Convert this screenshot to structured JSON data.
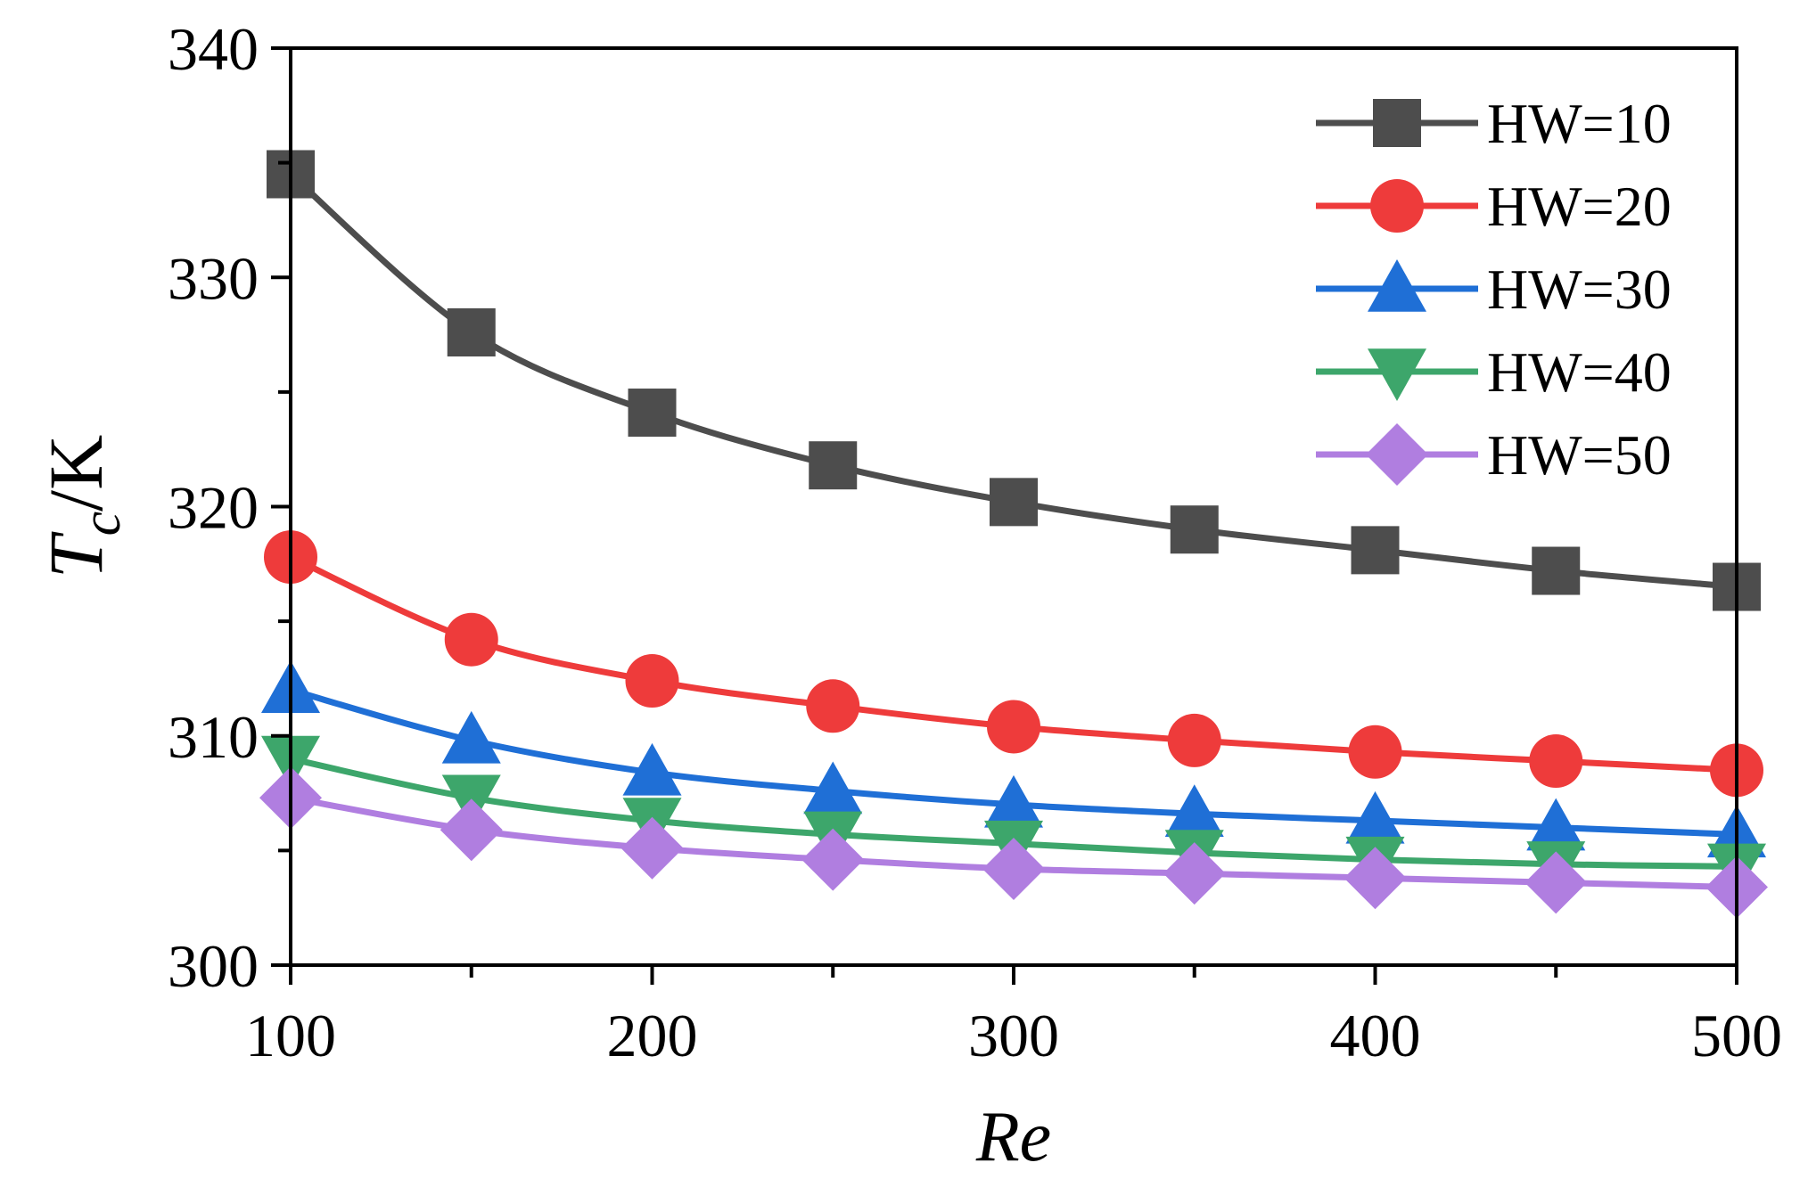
{
  "chart_data": {
    "type": "line",
    "title": "",
    "xlabel": "Re",
    "ylabel": {
      "main": "T",
      "sub": "c",
      "unit": "/K"
    },
    "xlim": [
      100,
      500
    ],
    "ylim": [
      300,
      340
    ],
    "xticks": [
      100,
      200,
      300,
      400,
      500
    ],
    "yticks": [
      300,
      310,
      320,
      330,
      340
    ],
    "x": [
      100,
      150,
      200,
      250,
      300,
      350,
      400,
      450,
      500
    ],
    "legend_position": "top-right",
    "series": [
      {
        "name": "HW=10",
        "marker": "square",
        "color": "#4d4d4d",
        "values": [
          334.5,
          327.6,
          324.1,
          321.8,
          320.2,
          319.0,
          318.1,
          317.2,
          316.5
        ]
      },
      {
        "name": "HW=20",
        "marker": "circle",
        "color": "#ee3b3b",
        "values": [
          317.8,
          314.2,
          312.4,
          311.3,
          310.4,
          309.8,
          309.3,
          308.9,
          308.5
        ]
      },
      {
        "name": "HW=30",
        "marker": "triangle-up",
        "color": "#1f6fd6",
        "values": [
          312.0,
          309.8,
          308.4,
          307.6,
          307.0,
          306.6,
          306.3,
          306.0,
          305.7
        ]
      },
      {
        "name": "HW=40",
        "marker": "triangle-down",
        "color": "#3da66b",
        "values": [
          309.0,
          307.3,
          306.3,
          305.7,
          305.3,
          304.9,
          304.6,
          304.4,
          304.3
        ]
      },
      {
        "name": "HW=50",
        "marker": "diamond",
        "color": "#b07ee0",
        "values": [
          307.3,
          305.9,
          305.1,
          304.6,
          304.2,
          304.0,
          303.8,
          303.6,
          303.4
        ]
      }
    ]
  }
}
